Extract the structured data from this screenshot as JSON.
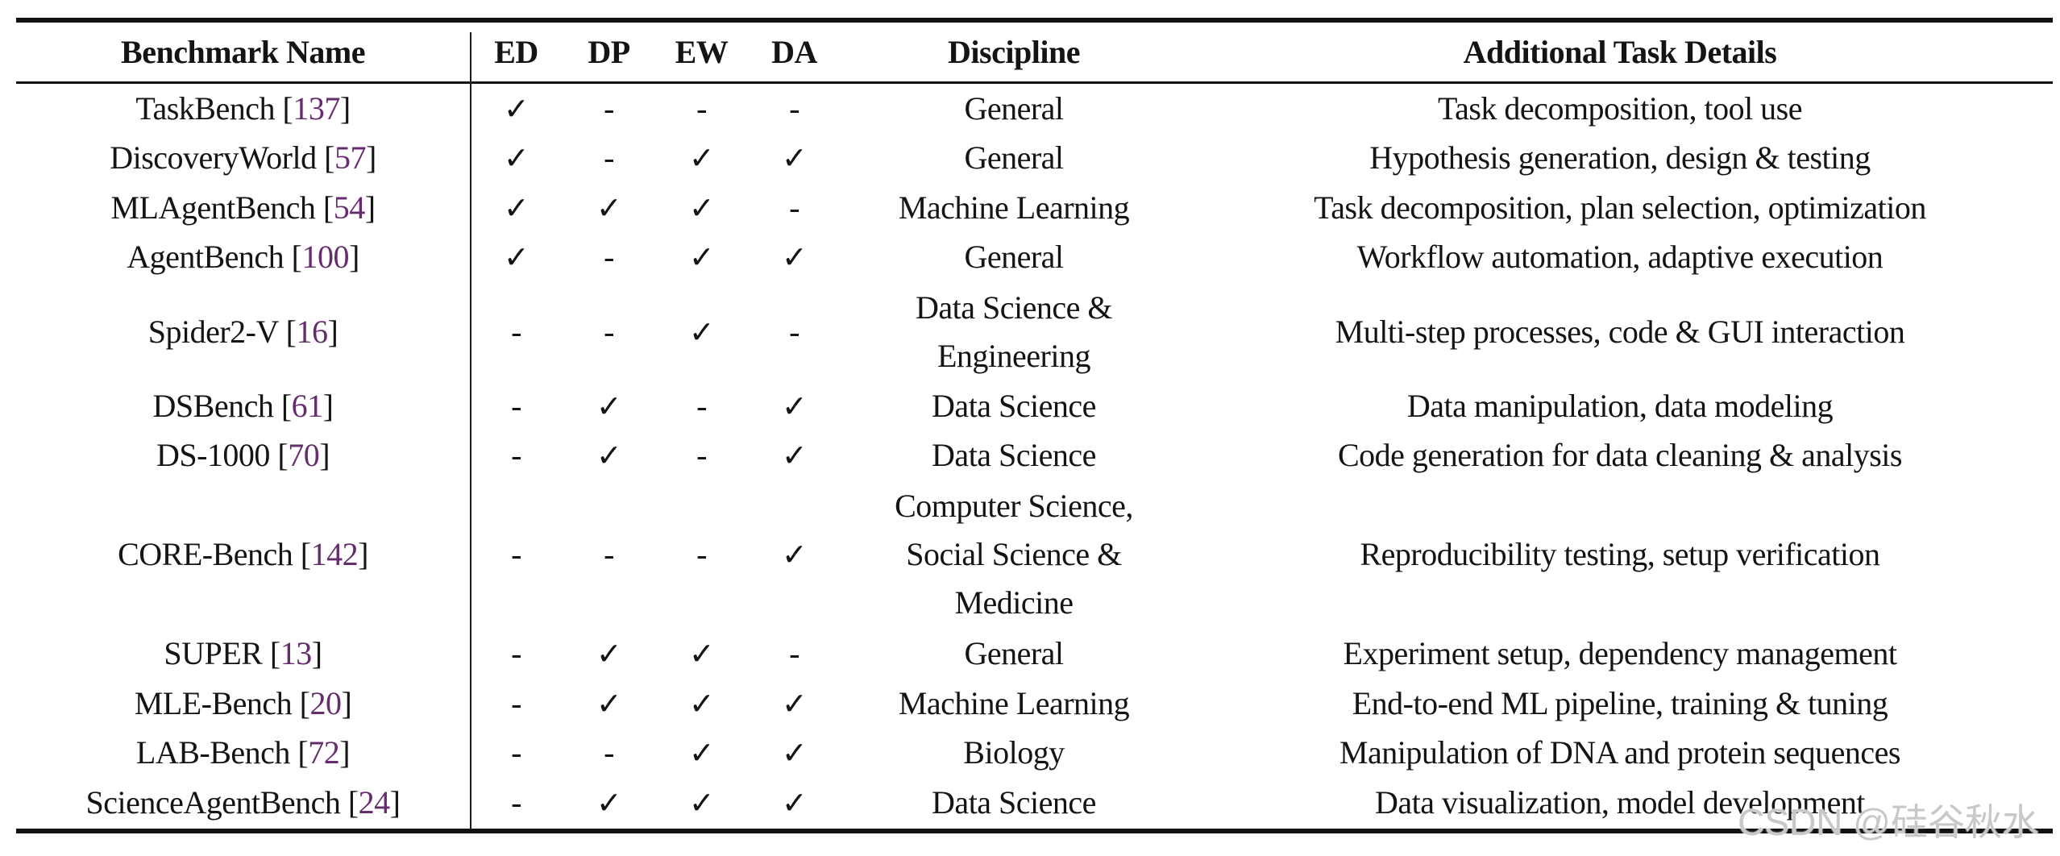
{
  "table": {
    "columns": [
      "Benchmark Name",
      "ED",
      "DP",
      "EW",
      "DA",
      "Discipline",
      "Additional Task Details"
    ],
    "check_symbol": "✓",
    "dash_symbol": "-",
    "rows": [
      {
        "name": "TaskBench",
        "cite": "137",
        "checks": [
          true,
          false,
          false,
          false
        ],
        "discipline": [
          "General"
        ],
        "details": "Task decomposition, tool use"
      },
      {
        "name": "DiscoveryWorld",
        "cite": "57",
        "checks": [
          true,
          false,
          true,
          true
        ],
        "discipline": [
          "General"
        ],
        "details": "Hypothesis generation, design & testing"
      },
      {
        "name": "MLAgentBench",
        "cite": "54",
        "checks": [
          true,
          true,
          true,
          false
        ],
        "discipline": [
          "Machine Learning"
        ],
        "details": "Task decomposition, plan selection, optimization"
      },
      {
        "name": "AgentBench",
        "cite": "100",
        "checks": [
          true,
          false,
          true,
          true
        ],
        "discipline": [
          "General"
        ],
        "details": "Workflow automation, adaptive execution"
      },
      {
        "name": "Spider2-V",
        "cite": "16",
        "checks": [
          false,
          false,
          true,
          false
        ],
        "discipline": [
          "Data Science &",
          "Engineering"
        ],
        "details": "Multi-step processes, code & GUI interaction"
      },
      {
        "name": "DSBench",
        "cite": "61",
        "checks": [
          false,
          true,
          false,
          true
        ],
        "discipline": [
          "Data Science"
        ],
        "details": "Data manipulation, data modeling"
      },
      {
        "name": "DS-1000",
        "cite": "70",
        "checks": [
          false,
          true,
          false,
          true
        ],
        "discipline": [
          "Data Science"
        ],
        "details": "Code generation for data cleaning & analysis"
      },
      {
        "name": "CORE-Bench",
        "cite": "142",
        "checks": [
          false,
          false,
          false,
          true
        ],
        "discipline": [
          "Computer Science,",
          "Social Science &",
          "Medicine"
        ],
        "details": "Reproducibility testing, setup verification"
      },
      {
        "name": "SUPER",
        "cite": "13",
        "checks": [
          false,
          true,
          true,
          false
        ],
        "discipline": [
          "General"
        ],
        "details": "Experiment setup, dependency management"
      },
      {
        "name": "MLE-Bench",
        "cite": "20",
        "checks": [
          false,
          true,
          true,
          true
        ],
        "discipline": [
          "Machine Learning"
        ],
        "details": "End-to-end ML pipeline, training & tuning"
      },
      {
        "name": "LAB-Bench",
        "cite": "72",
        "checks": [
          false,
          false,
          true,
          true
        ],
        "discipline": [
          "Biology"
        ],
        "details": "Manipulation of DNA and protein sequences"
      },
      {
        "name": "ScienceAgentBench",
        "cite": "24",
        "checks": [
          false,
          true,
          true,
          true
        ],
        "discipline": [
          "Data Science"
        ],
        "details": "Data visualization, model development"
      }
    ]
  },
  "watermark": "CSDN @硅谷秋水",
  "colors": {
    "citation": "#662d6e",
    "watermark": "#c5c5c5",
    "rule": "#121212"
  }
}
